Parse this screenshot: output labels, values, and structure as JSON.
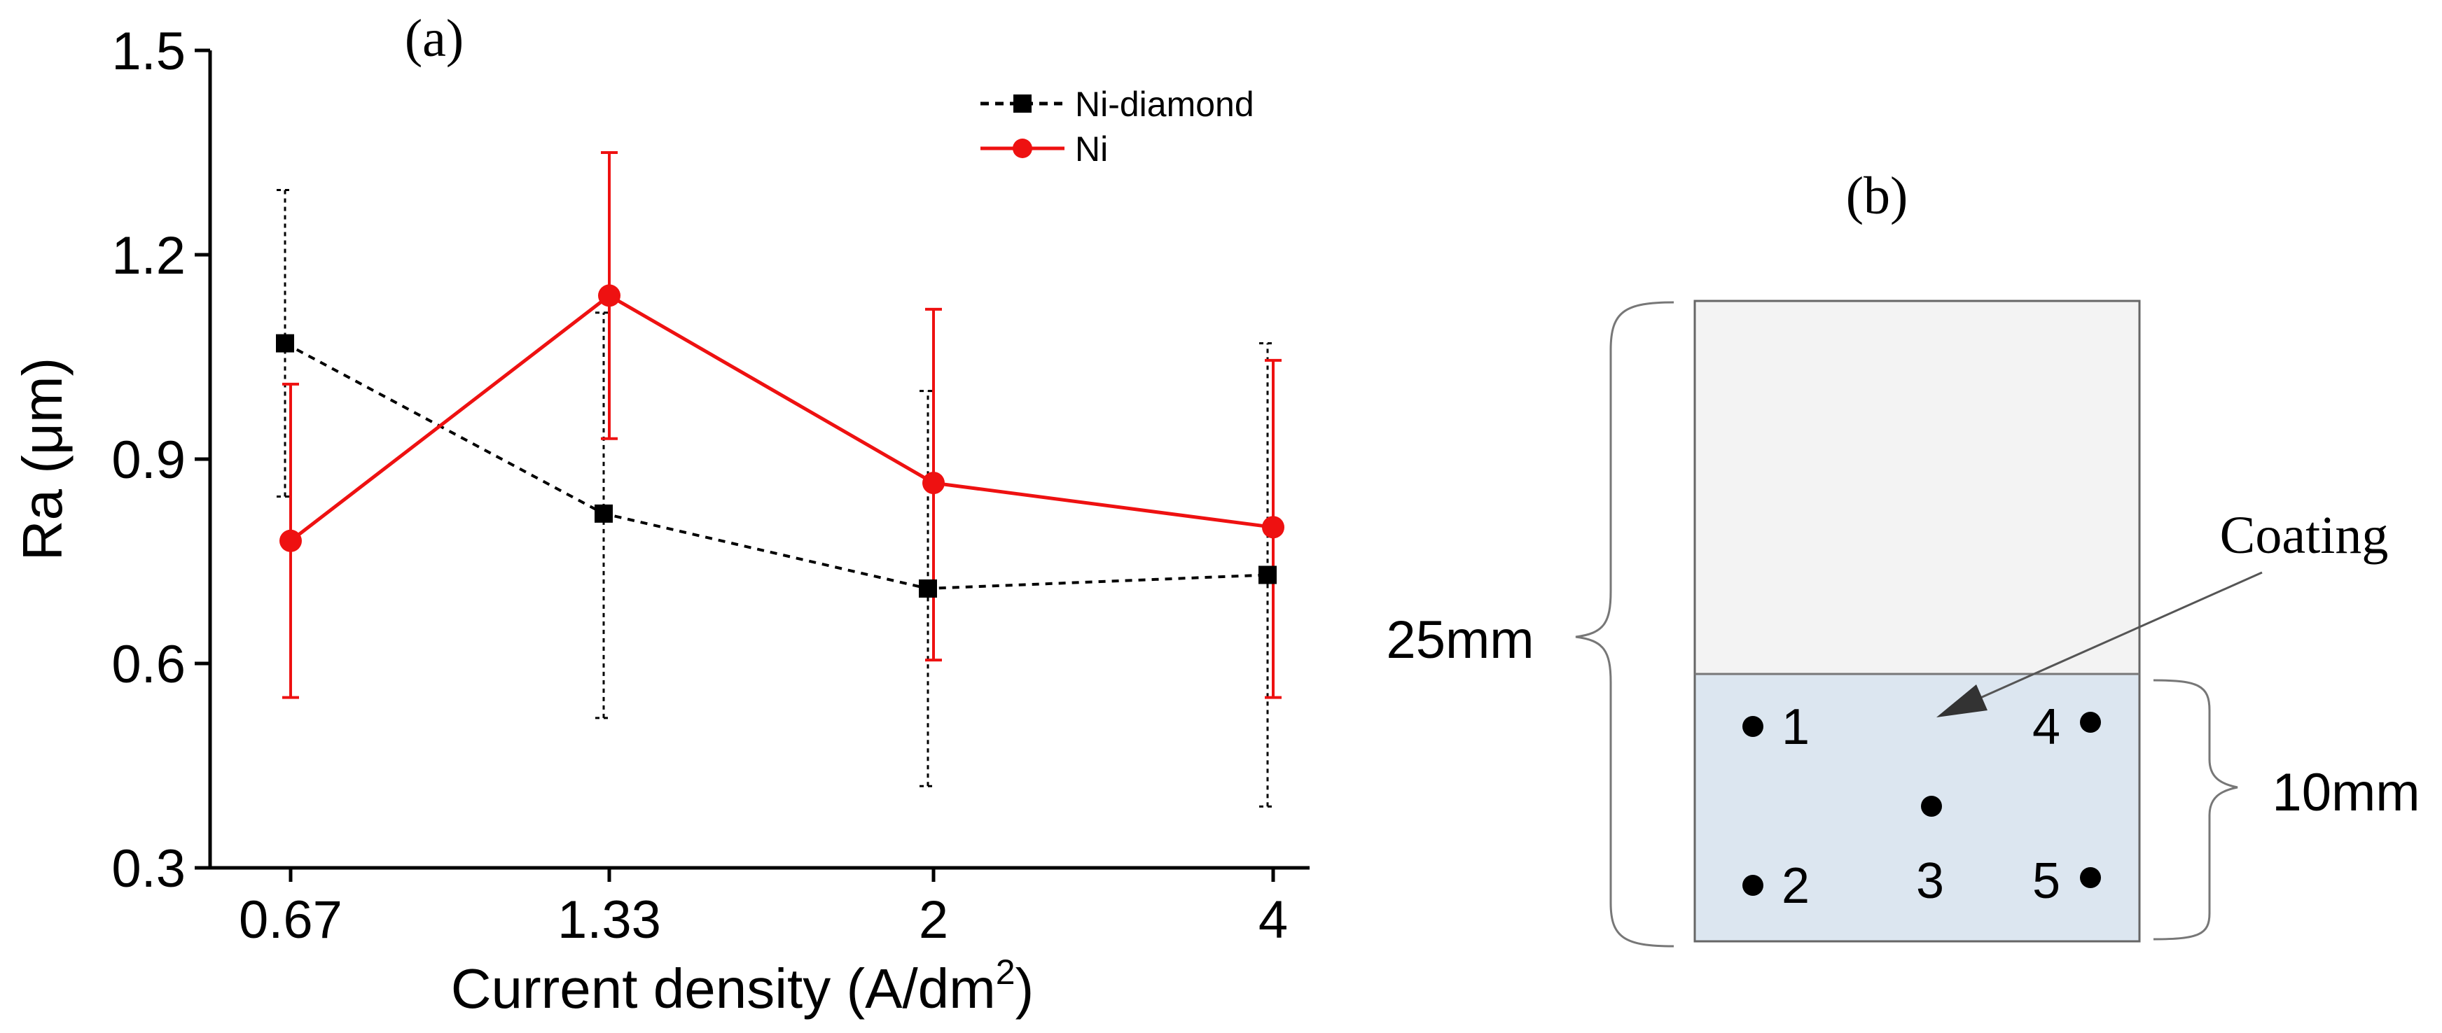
{
  "chart_data": [
    {
      "type": "line",
      "panel_label": "(a)",
      "xlabel_main": "Current density (A/dm",
      "xlabel_sup": "2",
      "xlabel_close": ")",
      "ylabel": "Ra (μm)",
      "categories": [
        "0.67",
        "1.33",
        "2",
        "4"
      ],
      "yticks": [
        "0.3",
        "0.6",
        "0.9",
        "1.2",
        "1.5"
      ],
      "ytick_values": [
        0.3,
        0.6,
        0.9,
        1.2,
        1.5
      ],
      "ylim": [
        0.3,
        1.5
      ],
      "grid": false,
      "legend_position": "top-right",
      "series": [
        {
          "name": "Ni-diamond",
          "color": "#000000",
          "line_style": "dotted",
          "marker": "square",
          "values": [
            1.07,
            0.82,
            0.71,
            0.73
          ],
          "error_low": [
            0.845,
            0.52,
            0.42,
            0.39
          ],
          "error_high": [
            1.295,
            1.115,
            1.0,
            1.07
          ]
        },
        {
          "name": "Ni",
          "color": "#ee1111",
          "line_style": "solid",
          "marker": "circle",
          "values": [
            0.78,
            1.14,
            0.865,
            0.8
          ],
          "error_low": [
            0.55,
            0.93,
            0.605,
            0.55
          ],
          "error_high": [
            1.01,
            1.35,
            1.12,
            1.045
          ]
        }
      ]
    }
  ],
  "diagram": {
    "panel_label": "(b)",
    "coating_label": "Coating",
    "height_total_label": "25mm",
    "height_coating_label": "10mm",
    "substrate_fill": "#f3f3f3",
    "coating_fill": "#dce6f0",
    "points": [
      {
        "label": "1"
      },
      {
        "label": "2"
      },
      {
        "label": "3"
      },
      {
        "label": "4"
      },
      {
        "label": "5"
      }
    ]
  }
}
